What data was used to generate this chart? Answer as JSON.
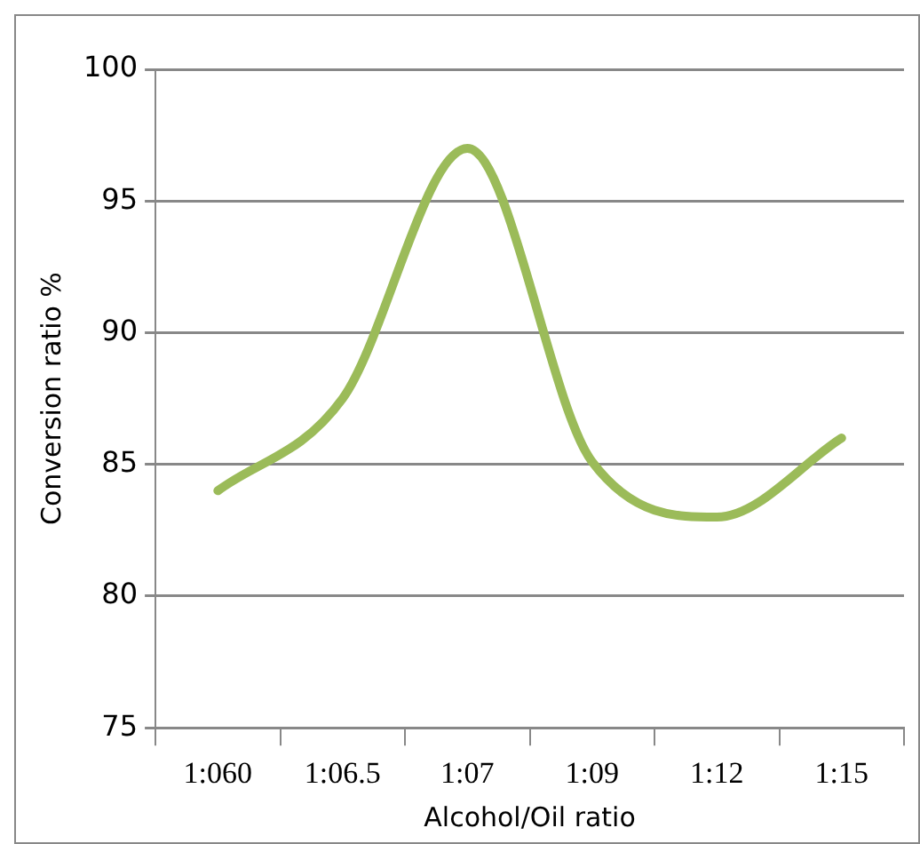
{
  "chart_data": {
    "type": "line",
    "xlabel": "Alcohol/Oil ratio",
    "ylabel": "Conversion ratio %",
    "categories": [
      "1:060",
      "1:06.5",
      "1:07",
      "1:09",
      "1:12",
      "1:15"
    ],
    "series": [
      {
        "color": "#9bbb59",
        "values": [
          84.0,
          87.5,
          97.0,
          85.1,
          83.0,
          86.0
        ]
      }
    ],
    "ylim": [
      75,
      100
    ],
    "yticks": [
      75,
      80,
      85,
      90,
      95,
      100
    ],
    "grid": "y",
    "legend": false,
    "marker": "none"
  }
}
